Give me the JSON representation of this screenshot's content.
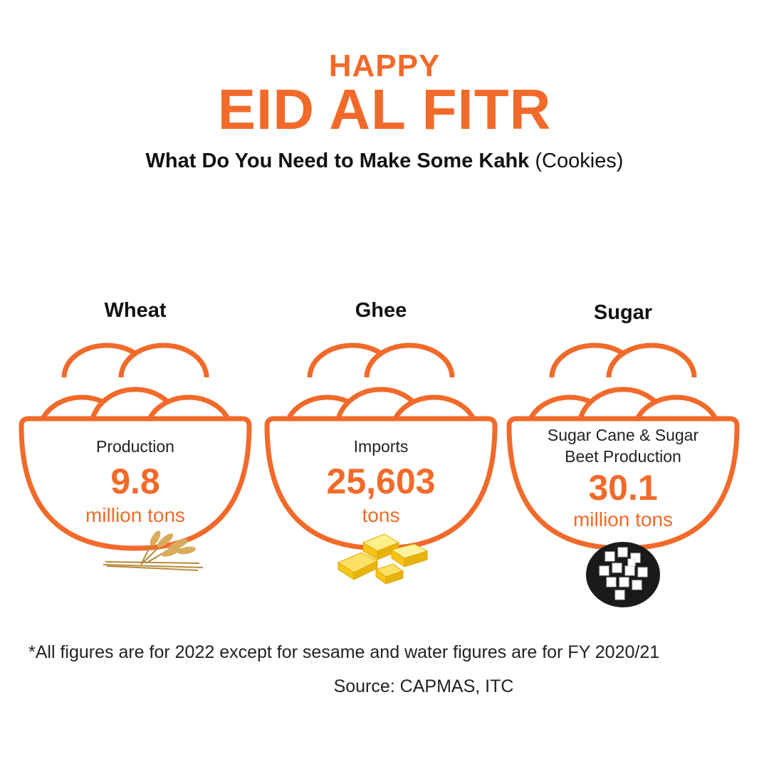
{
  "header": {
    "happy": "HAPPY",
    "title": "EID AL FITR",
    "subtitle_bold": "What Do You Need to Make Some Kahk",
    "subtitle_rest": " (Cookies)"
  },
  "accent_color": "#f26a2a",
  "items": [
    {
      "label": "Wheat",
      "metric": "Production",
      "value": "9.8",
      "unit": "million tons",
      "icon": "wheat-sheaf-icon"
    },
    {
      "label": "Ghee",
      "metric": "Imports",
      "value": "25,603",
      "unit": "tons",
      "icon": "butter-cubes-icon"
    },
    {
      "label": "Sugar",
      "metric_line1": "Sugar Cane & Sugar",
      "metric_line2": "Beet Production",
      "value": "30.1",
      "unit": "million tons",
      "icon": "sugar-bowl-icon"
    }
  ],
  "footer": {
    "note": "*All figures are for 2022 except for sesame and water figures are for FY 2020/21",
    "source": "Source: CAPMAS, ITC"
  }
}
